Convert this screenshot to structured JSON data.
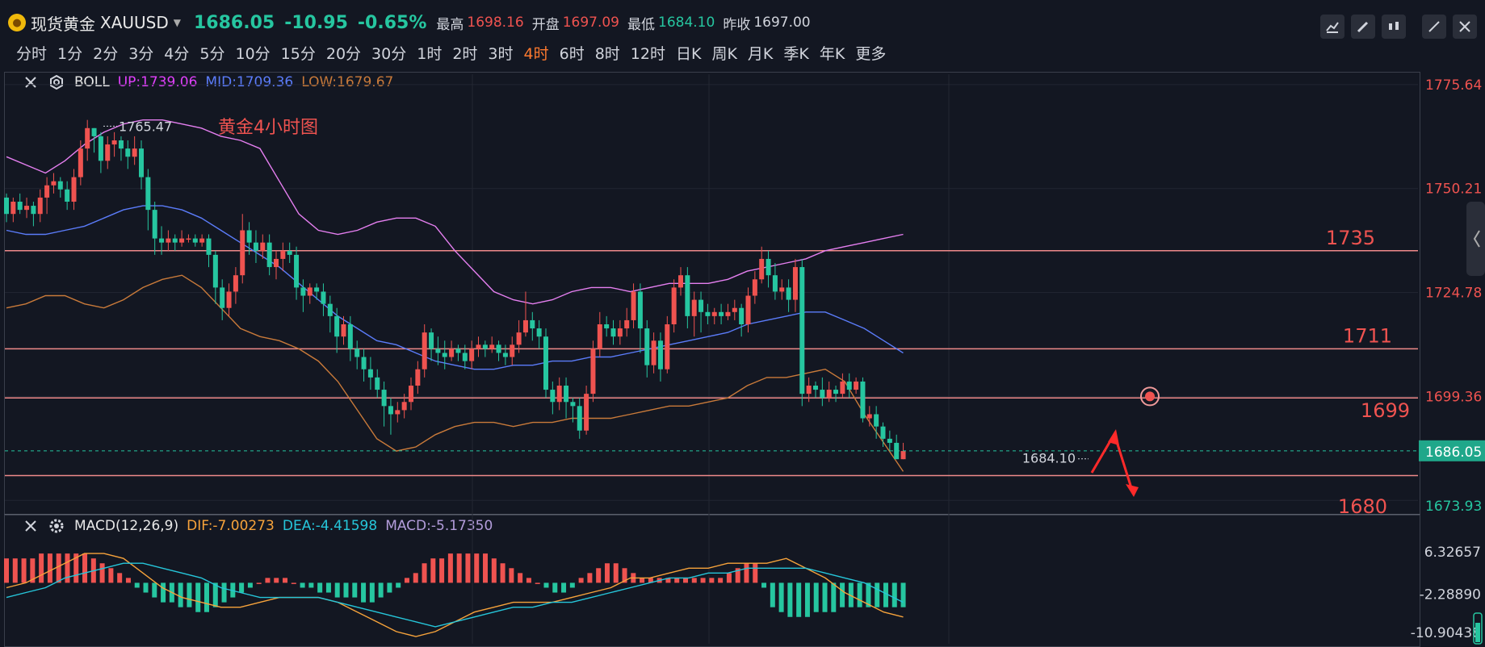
{
  "header": {
    "symbol_cn": "现货黄金",
    "symbol": "XAUUSD",
    "last": "1686.05",
    "change": "-10.95",
    "change_pct": "-0.65%",
    "high_label": "最高",
    "high": "1698.16",
    "open_label": "开盘",
    "open": "1697.09",
    "low_label": "最低",
    "low": "1684.10",
    "prev_label": "昨收",
    "prev": "1697.00"
  },
  "timeframes": [
    "分时",
    "1分",
    "2分",
    "3分",
    "4分",
    "5分",
    "10分",
    "15分",
    "20分",
    "30分",
    "1时",
    "2时",
    "3时",
    "4时",
    "6时",
    "8时",
    "12时",
    "日K",
    "周K",
    "月K",
    "季K",
    "年K",
    "更多"
  ],
  "active_timeframe": "4时",
  "boll": {
    "name": "BOLL",
    "up": "UP:1739.06",
    "mid": "MID:1709.36",
    "low": "LOW:1679.67"
  },
  "macd_legend": {
    "name": "MACD(12,26,9)",
    "dif": "DIF:-7.00273",
    "dea": "DEA:-4.41598",
    "macd": "MACD:-5.17350"
  },
  "colors": {
    "up": "#ef5350",
    "down": "#26c6a0",
    "boll_up": "#e57ff0",
    "boll_mid": "#5b7cfa",
    "boll_low": "#c97a3a",
    "level": "#ef8a8a"
  },
  "icons": [
    "close-icon",
    "gear-icon",
    "chart-icon",
    "pencil-icon",
    "candle-icon",
    "expand-icon"
  ],
  "chart_data": {
    "type": "candlestick",
    "title": "黄金4小时图",
    "price_axis_ticks": [
      "1775.64",
      "1750.21",
      "1724.78",
      "1699.36",
      "1673.93"
    ],
    "last_price_tag": "1686.05",
    "ylim": [
      1670,
      1780
    ],
    "high_marker": "1765.47",
    "low_marker": "1684.10",
    "levels": [
      {
        "label": "1735",
        "value": 1735
      },
      {
        "label": "1711",
        "value": 1711
      },
      {
        "label": "1699",
        "value": 1699
      },
      {
        "label": "1680",
        "value": 1680
      }
    ],
    "candles": [
      [
        1748,
        1744,
        1749,
        1742
      ],
      [
        1744,
        1747,
        1748,
        1742
      ],
      [
        1747,
        1745,
        1749,
        1744
      ],
      [
        1745,
        1746,
        1748,
        1743
      ],
      [
        1746,
        1744,
        1747,
        1741
      ],
      [
        1744,
        1748,
        1750,
        1742
      ],
      [
        1748,
        1751,
        1753,
        1744
      ],
      [
        1751,
        1752,
        1754,
        1749
      ],
      [
        1752,
        1750,
        1753,
        1748
      ],
      [
        1750,
        1747,
        1752,
        1745
      ],
      [
        1747,
        1753,
        1755,
        1745
      ],
      [
        1753,
        1760,
        1762,
        1751
      ],
      [
        1760,
        1765,
        1767,
        1757
      ],
      [
        1765,
        1763,
        1765,
        1759
      ],
      [
        1763,
        1757,
        1764,
        1754
      ],
      [
        1757,
        1761,
        1763,
        1755
      ],
      [
        1761,
        1762,
        1764,
        1758
      ],
      [
        1762,
        1760,
        1763,
        1757
      ],
      [
        1760,
        1758,
        1762,
        1755
      ],
      [
        1758,
        1760,
        1763,
        1756
      ],
      [
        1760,
        1753,
        1762,
        1750
      ],
      [
        1753,
        1745,
        1755,
        1740
      ],
      [
        1745,
        1738,
        1747,
        1734
      ],
      [
        1738,
        1737,
        1741,
        1734
      ],
      [
        1737,
        1738,
        1740,
        1735
      ],
      [
        1738,
        1737,
        1739,
        1735
      ],
      [
        1737,
        1738,
        1740,
        1736
      ],
      [
        1738,
        1738,
        1739,
        1737
      ],
      [
        1738,
        1737,
        1739,
        1736
      ],
      [
        1737,
        1738,
        1739,
        1736
      ],
      [
        1738,
        1734,
        1739,
        1731
      ],
      [
        1734,
        1726,
        1735,
        1722
      ],
      [
        1726,
        1721,
        1728,
        1718
      ],
      [
        1721,
        1725,
        1727,
        1719
      ],
      [
        1725,
        1729,
        1731,
        1722
      ],
      [
        1729,
        1740,
        1744,
        1727
      ],
      [
        1740,
        1737,
        1742,
        1734
      ],
      [
        1737,
        1735,
        1740,
        1732
      ],
      [
        1735,
        1737,
        1739,
        1733
      ],
      [
        1737,
        1731,
        1739,
        1729
      ],
      [
        1731,
        1733,
        1735,
        1728
      ],
      [
        1733,
        1735,
        1737,
        1730
      ],
      [
        1735,
        1734,
        1737,
        1732
      ],
      [
        1734,
        1726,
        1736,
        1723
      ],
      [
        1726,
        1724,
        1728,
        1720
      ],
      [
        1724,
        1726,
        1727,
        1722
      ],
      [
        1726,
        1725,
        1727,
        1723
      ],
      [
        1725,
        1722,
        1727,
        1719
      ],
      [
        1722,
        1719,
        1724,
        1715
      ],
      [
        1719,
        1714,
        1721,
        1710
      ],
      [
        1714,
        1717,
        1719,
        1712
      ],
      [
        1717,
        1711,
        1719,
        1708
      ],
      [
        1711,
        1709,
        1713,
        1706
      ],
      [
        1709,
        1706,
        1711,
        1703
      ],
      [
        1706,
        1704,
        1709,
        1701
      ],
      [
        1704,
        1701,
        1706,
        1699
      ],
      [
        1701,
        1697,
        1703,
        1692
      ],
      [
        1697,
        1695,
        1699,
        1690
      ],
      [
        1695,
        1696,
        1698,
        1693
      ],
      [
        1696,
        1698,
        1700,
        1694
      ],
      [
        1698,
        1702,
        1704,
        1696
      ],
      [
        1702,
        1706,
        1708,
        1700
      ],
      [
        1706,
        1715,
        1717,
        1704
      ],
      [
        1715,
        1711,
        1716,
        1708
      ],
      [
        1711,
        1710,
        1714,
        1707
      ],
      [
        1710,
        1709,
        1713,
        1706
      ],
      [
        1709,
        1711,
        1713,
        1708
      ],
      [
        1711,
        1710,
        1712,
        1708
      ],
      [
        1710,
        1708,
        1712,
        1706
      ],
      [
        1708,
        1711,
        1713,
        1706
      ],
      [
        1711,
        1712,
        1714,
        1709
      ],
      [
        1712,
        1711,
        1713,
        1709
      ],
      [
        1711,
        1712,
        1714,
        1710
      ],
      [
        1712,
        1710,
        1713,
        1708
      ],
      [
        1710,
        1709,
        1712,
        1707
      ],
      [
        1709,
        1712,
        1714,
        1707
      ],
      [
        1712,
        1715,
        1718,
        1710
      ],
      [
        1715,
        1718,
        1725,
        1714
      ],
      [
        1718,
        1716,
        1720,
        1713
      ],
      [
        1716,
        1714,
        1718,
        1711
      ],
      [
        1714,
        1701,
        1716,
        1699
      ],
      [
        1701,
        1698,
        1703,
        1695
      ],
      [
        1698,
        1702,
        1704,
        1696
      ],
      [
        1702,
        1698,
        1704,
        1694
      ],
      [
        1698,
        1697,
        1699,
        1693
      ],
      [
        1697,
        1691,
        1699,
        1689
      ],
      [
        1691,
        1700,
        1702,
        1690
      ],
      [
        1700,
        1711,
        1713,
        1698
      ],
      [
        1711,
        1717,
        1720,
        1709
      ],
      [
        1717,
        1716,
        1719,
        1714
      ],
      [
        1716,
        1714,
        1718,
        1712
      ],
      [
        1714,
        1716,
        1718,
        1712
      ],
      [
        1716,
        1718,
        1721,
        1714
      ],
      [
        1718,
        1725,
        1727,
        1716
      ],
      [
        1725,
        1716,
        1727,
        1710
      ],
      [
        1716,
        1707,
        1718,
        1704
      ],
      [
        1707,
        1713,
        1715,
        1705
      ],
      [
        1713,
        1706,
        1715,
        1703
      ],
      [
        1706,
        1717,
        1719,
        1705
      ],
      [
        1717,
        1726,
        1728,
        1715
      ],
      [
        1726,
        1729,
        1731,
        1724
      ],
      [
        1729,
        1719,
        1731,
        1716
      ],
      [
        1719,
        1723,
        1725,
        1714
      ],
      [
        1723,
        1720,
        1725,
        1715
      ],
      [
        1720,
        1719,
        1722,
        1717
      ],
      [
        1719,
        1720,
        1721,
        1717
      ],
      [
        1720,
        1719,
        1722,
        1717
      ],
      [
        1719,
        1720,
        1722,
        1718
      ],
      [
        1720,
        1721,
        1723,
        1718
      ],
      [
        1721,
        1717,
        1722,
        1714
      ],
      [
        1717,
        1724,
        1726,
        1715
      ],
      [
        1724,
        1728,
        1730,
        1722
      ],
      [
        1728,
        1733,
        1736,
        1727
      ],
      [
        1733,
        1729,
        1735,
        1726
      ],
      [
        1729,
        1725,
        1732,
        1723
      ],
      [
        1725,
        1726,
        1728,
        1723
      ],
      [
        1726,
        1723,
        1728,
        1720
      ],
      [
        1723,
        1731,
        1733,
        1720
      ],
      [
        1731,
        1700,
        1733,
        1697
      ],
      [
        1700,
        1702,
        1704,
        1698
      ],
      [
        1702,
        1701,
        1703,
        1699
      ],
      [
        1701,
        1699,
        1704,
        1697
      ],
      [
        1699,
        1701,
        1703,
        1698
      ],
      [
        1701,
        1700,
        1702,
        1698
      ],
      [
        1700,
        1703,
        1705,
        1699
      ],
      [
        1703,
        1701,
        1705,
        1699
      ],
      [
        1701,
        1703,
        1704,
        1700
      ],
      [
        1703,
        1694,
        1704,
        1693
      ],
      [
        1694,
        1695,
        1697,
        1692
      ],
      [
        1695,
        1692,
        1697,
        1689
      ],
      [
        1692,
        1689,
        1693,
        1687
      ],
      [
        1689,
        1688,
        1691,
        1686
      ],
      [
        1688,
        1684,
        1690,
        1684
      ],
      [
        1684,
        1686,
        1688,
        1684
      ]
    ],
    "boll_up": [
      1758,
      1756,
      1754,
      1757,
      1761,
      1764,
      1766,
      1767,
      1767,
      1766,
      1765,
      1763,
      1762,
      1760,
      1752,
      1744,
      1740,
      1739,
      1740,
      1742,
      1743,
      1743,
      1741,
      1735,
      1730,
      1725,
      1723,
      1722,
      1723,
      1725,
      1726,
      1726,
      1725,
      1726,
      1727,
      1727,
      1727,
      1728,
      1730,
      1731,
      1732,
      1733,
      1735,
      1736,
      1737,
      1738,
      1739
    ],
    "boll_mid": [
      1740,
      1739,
      1739,
      1740,
      1741,
      1743,
      1745,
      1746,
      1746,
      1745,
      1743,
      1740,
      1737,
      1734,
      1731,
      1727,
      1723,
      1719,
      1716,
      1713,
      1712,
      1710,
      1708,
      1707,
      1706,
      1706,
      1707,
      1707,
      1708,
      1708,
      1709,
      1709,
      1710,
      1711,
      1712,
      1713,
      1714,
      1715,
      1717,
      1718,
      1719,
      1720,
      1720,
      1718,
      1716,
      1713,
      1710
    ],
    "boll_low": [
      1721,
      1722,
      1724,
      1724,
      1722,
      1721,
      1723,
      1726,
      1728,
      1729,
      1726,
      1721,
      1716,
      1714,
      1713,
      1711,
      1708,
      1703,
      1696,
      1689,
      1686,
      1687,
      1690,
      1692,
      1693,
      1693,
      1692,
      1693,
      1693,
      1694,
      1694,
      1694,
      1695,
      1696,
      1697,
      1697,
      1698,
      1699,
      1702,
      1704,
      1704,
      1705,
      1706,
      1703,
      1695,
      1688,
      1681
    ],
    "macd_axis_ticks": [
      "6.32657",
      "-2.28890",
      "-10.90438"
    ],
    "macd_hist": [
      5,
      5,
      5,
      5,
      6,
      6,
      6,
      6,
      6,
      6,
      5,
      4,
      3,
      2,
      1,
      -1,
      -2,
      -3,
      -4,
      -4,
      -5,
      -5,
      -6,
      -6,
      -5,
      -4,
      -3,
      -2,
      -1,
      0,
      1,
      1,
      1,
      0,
      -1,
      -1,
      -2,
      -2,
      -3,
      -3,
      -3,
      -4,
      -4,
      -3,
      -2,
      -1,
      1,
      2,
      4,
      5,
      5,
      6,
      6,
      6,
      6,
      6,
      5,
      4,
      3,
      2,
      1,
      0,
      -1,
      -2,
      -2,
      -1,
      1,
      2,
      3,
      4,
      4,
      3,
      2,
      1,
      1,
      1,
      1,
      1,
      1,
      1,
      1,
      1,
      1,
      2,
      3,
      4,
      4,
      -1,
      -5,
      -6,
      -7,
      -7,
      -7,
      -6,
      -6,
      -6,
      -5,
      -5,
      -5,
      -5,
      -5,
      -5,
      -5,
      -5
    ],
    "macd_dif": [
      -1,
      0,
      2,
      4,
      6,
      6,
      5,
      2,
      -1,
      -3,
      -4,
      -5,
      -5,
      -4,
      -3,
      -3,
      -3,
      -4,
      -6,
      -8,
      -10,
      -11,
      -10,
      -8,
      -6,
      -5,
      -4,
      -4,
      -4,
      -3,
      -2,
      -1,
      1,
      1,
      2,
      3,
      3,
      4,
      4,
      4,
      5,
      3,
      1,
      -2,
      -4,
      -6,
      -7
    ],
    "macd_dea": [
      -3,
      -2,
      -1,
      1,
      2,
      3,
      4,
      4,
      3,
      2,
      1,
      -1,
      -2,
      -3,
      -3,
      -3,
      -3,
      -4,
      -5,
      -6,
      -7,
      -8,
      -9,
      -8,
      -7,
      -6,
      -5,
      -5,
      -4,
      -4,
      -3,
      -2,
      -1,
      0,
      1,
      1,
      2,
      2,
      3,
      3,
      3,
      3,
      2,
      1,
      0,
      -2,
      -4
    ]
  }
}
